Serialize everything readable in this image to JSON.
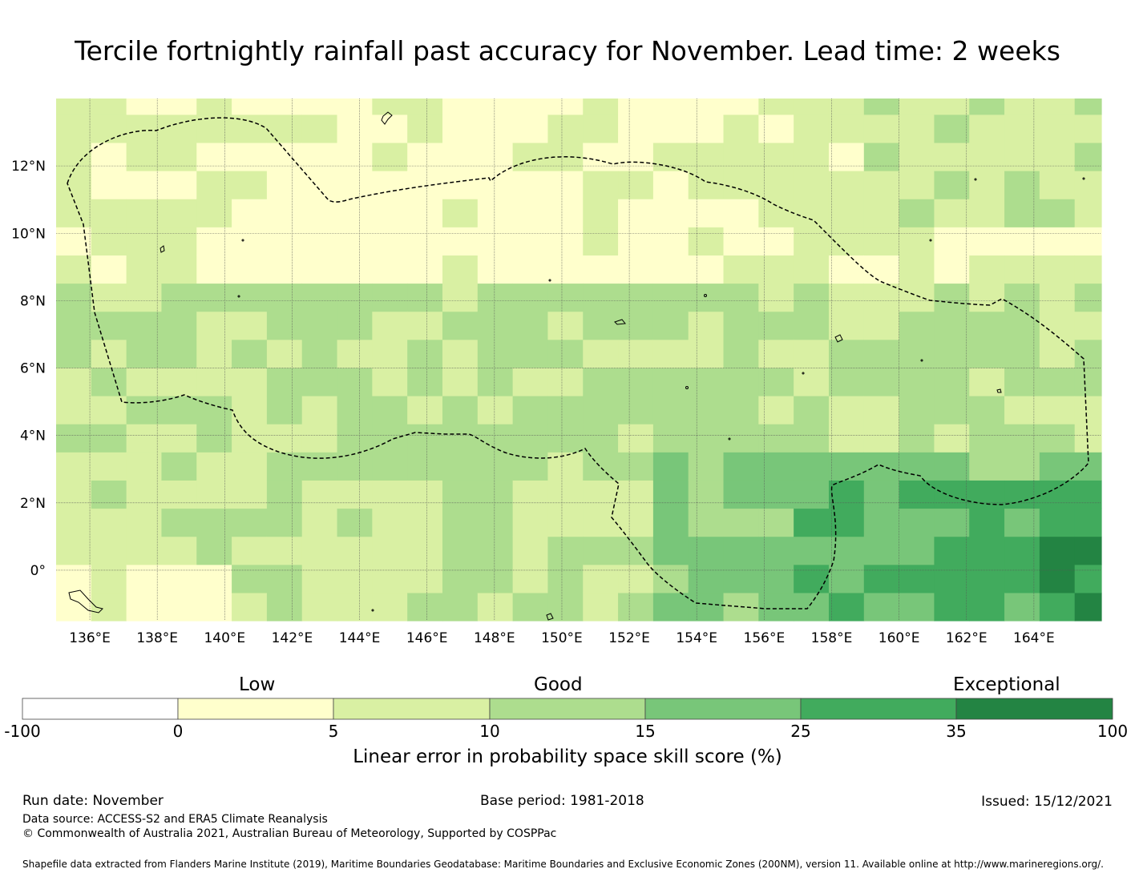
{
  "title": "Tercile fortnightly rainfall past accuracy for November. Lead time: 2 weeks",
  "map": {
    "lon_range": [
      135,
      166
    ],
    "lat_range": [
      -1.5,
      14
    ],
    "lon_ticks": [
      "136°E",
      "138°E",
      "140°E",
      "142°E",
      "144°E",
      "146°E",
      "148°E",
      "150°E",
      "152°E",
      "154°E",
      "156°E",
      "158°E",
      "160°E",
      "162°E",
      "164°E"
    ],
    "lon_tick_values": [
      136,
      138,
      140,
      142,
      144,
      146,
      148,
      150,
      152,
      154,
      156,
      158,
      160,
      162,
      164
    ],
    "lat_ticks": [
      "12°N",
      "10°N",
      "8°N",
      "6°N",
      "4°N",
      "2°N",
      "0°"
    ],
    "lat_tick_values": [
      12,
      10,
      8,
      6,
      4,
      2,
      0
    ],
    "category_colors": [
      "#ffffff",
      "#ffffcc",
      "#d9f0a3",
      "#addd8e",
      "#78c679",
      "#41ab5d",
      "#238443"
    ]
  },
  "colorbar": {
    "category_labels": [
      "Low",
      "Good",
      "Exceptional"
    ],
    "ticks": [
      "-100",
      "0",
      "5",
      "10",
      "15",
      "25",
      "35",
      "100"
    ],
    "colors": [
      "#ffffff",
      "#ffffcc",
      "#d9f0a3",
      "#addd8e",
      "#78c679",
      "#41ab5d",
      "#238443"
    ],
    "label": "Linear error in probability space skill score (%)"
  },
  "footer": {
    "run_date": "Run date: November",
    "base_period": "Base period: 1981-2018",
    "issued": "Issued: 15/12/2021",
    "data_source": "Data source: ACCESS-S2 and ERA5 Climate Reanalysis",
    "copyright": "© Commonwealth of Australia 2021, Australian Bureau of Meteorology, Supported by COSPPac",
    "shapefile": "Shapefile data extracted from Flanders Marine Institute (2019), Maritime Boundaries Geodatabase: Maritime Boundaries and Exclusive Economic Zones (200NM), version 11. Available online at http://www.marineregions.org/."
  }
}
